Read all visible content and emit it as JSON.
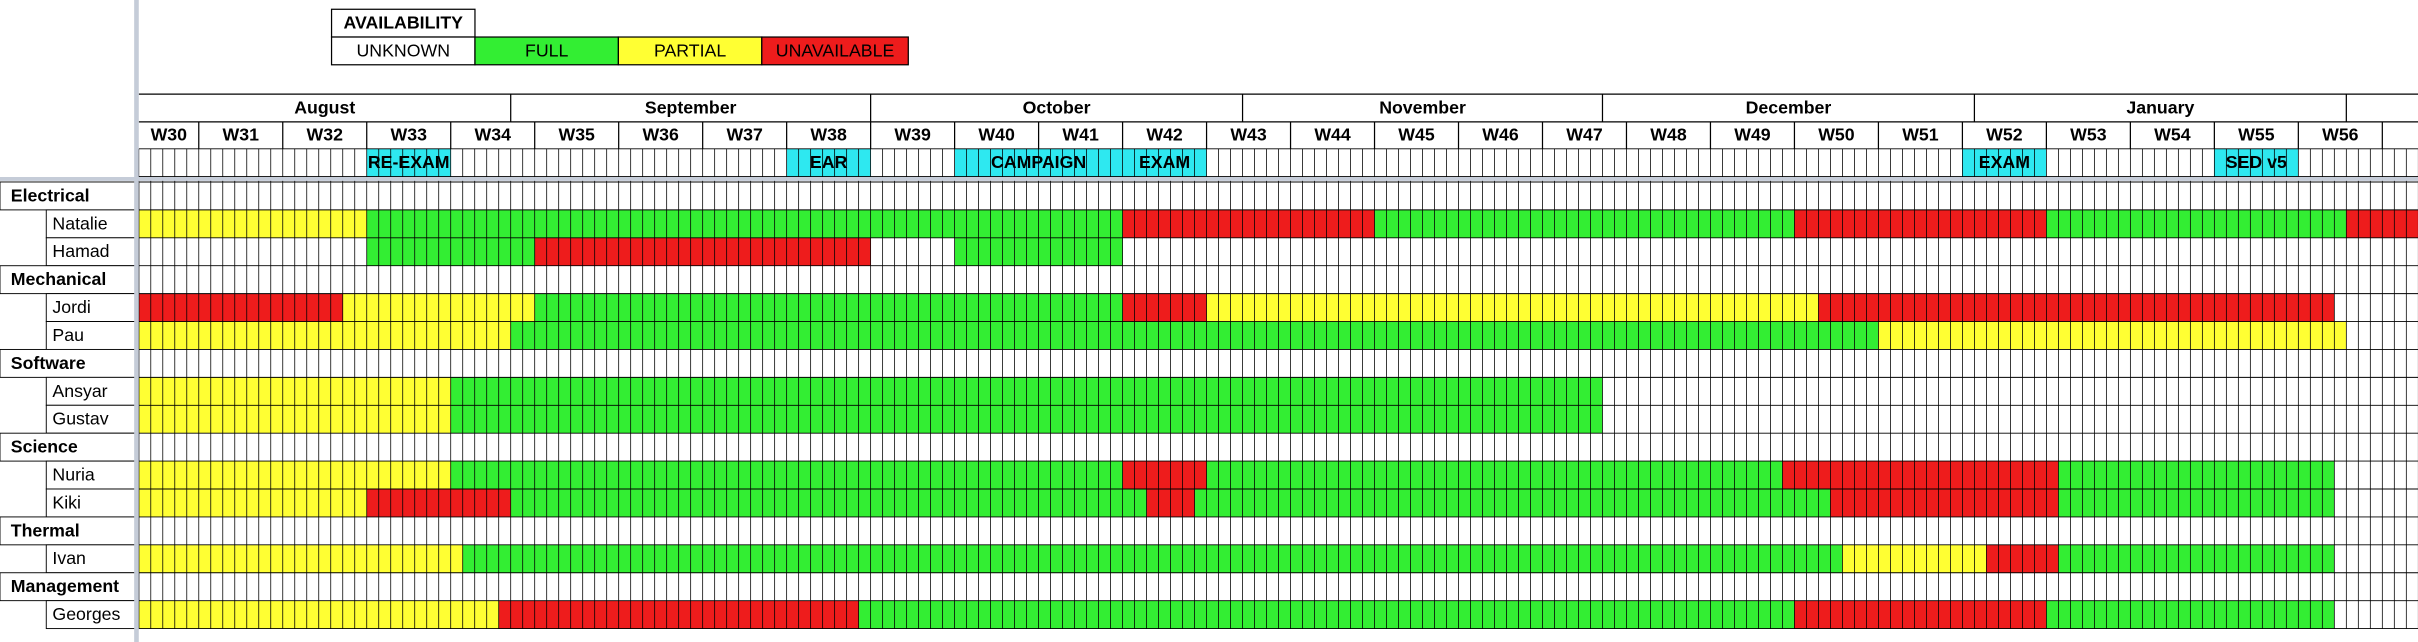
{
  "legend": {
    "title": "AVAILABILITY",
    "items": [
      {
        "label": "UNKNOWN",
        "color": "#ffffff"
      },
      {
        "label": "FULL",
        "color": "#33ee33"
      },
      {
        "label": "PARTIAL",
        "color": "#ffff33"
      },
      {
        "label": "UNAVAILABLE",
        "color": "#ee1c1c"
      }
    ]
  },
  "months": [
    {
      "label": "August",
      "days": 31
    },
    {
      "label": "September",
      "days": 30
    },
    {
      "label": "October",
      "days": 31
    },
    {
      "label": "November",
      "days": 30
    },
    {
      "label": "December",
      "days": 31
    },
    {
      "label": "January",
      "days": 31
    }
  ],
  "weeks": [
    {
      "label": "W30",
      "days": 5
    },
    {
      "label": "W31",
      "days": 7
    },
    {
      "label": "W32",
      "days": 7
    },
    {
      "label": "W33",
      "days": 7
    },
    {
      "label": "W34",
      "days": 7
    },
    {
      "label": "W35",
      "days": 7
    },
    {
      "label": "W36",
      "days": 7
    },
    {
      "label": "W37",
      "days": 7
    },
    {
      "label": "W38",
      "days": 7
    },
    {
      "label": "W39",
      "days": 7
    },
    {
      "label": "W40",
      "days": 7
    },
    {
      "label": "W41",
      "days": 7
    },
    {
      "label": "W42",
      "days": 7
    },
    {
      "label": "W43",
      "days": 7
    },
    {
      "label": "W44",
      "days": 7
    },
    {
      "label": "W45",
      "days": 7
    },
    {
      "label": "W46",
      "days": 7
    },
    {
      "label": "W47",
      "days": 7
    },
    {
      "label": "W48",
      "days": 7
    },
    {
      "label": "W49",
      "days": 7
    },
    {
      "label": "W50",
      "days": 7
    },
    {
      "label": "W51",
      "days": 7
    },
    {
      "label": "W52",
      "days": 7
    },
    {
      "label": "W53",
      "days": 7
    },
    {
      "label": "W54",
      "days": 7
    },
    {
      "label": "W55",
      "days": 7
    },
    {
      "label": "W56",
      "days": 7
    }
  ],
  "events": [
    {
      "label": "RE-EXAM",
      "start": 19,
      "end": 26,
      "color": "#2ee8f0"
    },
    {
      "label": "EAR",
      "start": 54,
      "end": 61,
      "color": "#2ee8f0"
    },
    {
      "label": "CAMPAIGN",
      "start": 68,
      "end": 82,
      "color": "#2ee8f0"
    },
    {
      "label": "EXAM",
      "start": 82,
      "end": 89,
      "color": "#2ee8f0"
    },
    {
      "label": "EXAM",
      "start": 152,
      "end": 159,
      "color": "#2ee8f0"
    },
    {
      "label": "SED v5",
      "start": 173,
      "end": 180,
      "color": "#2ee8f0"
    }
  ],
  "groups": [
    {
      "name": "Electrical",
      "people": [
        {
          "name": "Natalie",
          "segments": [
            {
              "color": "#ffff33",
              "start": 0,
              "end": 19
            },
            {
              "color": "#33ee33",
              "start": 19,
              "end": 82
            },
            {
              "color": "#ee1c1c",
              "start": 82,
              "end": 103
            },
            {
              "color": "#33ee33",
              "start": 103,
              "end": 138
            },
            {
              "color": "#ee1c1c",
              "start": 138,
              "end": 159
            },
            {
              "color": "#33ee33",
              "start": 159,
              "end": 184
            },
            {
              "color": "#ee1c1c",
              "start": 184,
              "end": 190
            }
          ]
        },
        {
          "name": "Hamad",
          "segments": [
            {
              "color": "#33ee33",
              "start": 19,
              "end": 33
            },
            {
              "color": "#ee1c1c",
              "start": 33,
              "end": 61
            },
            {
              "color": "#33ee33",
              "start": 68,
              "end": 82
            }
          ]
        }
      ]
    },
    {
      "name": "Mechanical",
      "people": [
        {
          "name": "Jordi",
          "segments": [
            {
              "color": "#ee1c1c",
              "start": 0,
              "end": 17
            },
            {
              "color": "#ffff33",
              "start": 17,
              "end": 33
            },
            {
              "color": "#33ee33",
              "start": 33,
              "end": 82
            },
            {
              "color": "#ee1c1c",
              "start": 82,
              "end": 89
            },
            {
              "color": "#ffff33",
              "start": 89,
              "end": 140
            },
            {
              "color": "#ee1c1c",
              "start": 140,
              "end": 183
            }
          ]
        },
        {
          "name": "Pau",
          "segments": [
            {
              "color": "#ffff33",
              "start": 0,
              "end": 31
            },
            {
              "color": "#33ee33",
              "start": 31,
              "end": 145
            },
            {
              "color": "#ffff33",
              "start": 145,
              "end": 184
            }
          ]
        }
      ]
    },
    {
      "name": "Software",
      "people": [
        {
          "name": "Ansyar",
          "segments": [
            {
              "color": "#ffff33",
              "start": 0,
              "end": 26
            },
            {
              "color": "#33ee33",
              "start": 26,
              "end": 122
            }
          ]
        },
        {
          "name": "Gustav",
          "segments": [
            {
              "color": "#ffff33",
              "start": 0,
              "end": 26
            },
            {
              "color": "#33ee33",
              "start": 26,
              "end": 122
            }
          ]
        }
      ]
    },
    {
      "name": "Science",
      "people": [
        {
          "name": "Nuria",
          "segments": [
            {
              "color": "#ffff33",
              "start": 0,
              "end": 26
            },
            {
              "color": "#33ee33",
              "start": 26,
              "end": 82
            },
            {
              "color": "#ee1c1c",
              "start": 82,
              "end": 89
            },
            {
              "color": "#33ee33",
              "start": 89,
              "end": 137
            },
            {
              "color": "#ee1c1c",
              "start": 137,
              "end": 160
            },
            {
              "color": "#33ee33",
              "start": 160,
              "end": 183
            }
          ]
        },
        {
          "name": "Kiki",
          "segments": [
            {
              "color": "#ffff33",
              "start": 0,
              "end": 19
            },
            {
              "color": "#ee1c1c",
              "start": 19,
              "end": 31
            },
            {
              "color": "#33ee33",
              "start": 31,
              "end": 84
            },
            {
              "color": "#ee1c1c",
              "start": 84,
              "end": 88
            },
            {
              "color": "#33ee33",
              "start": 88,
              "end": 141
            },
            {
              "color": "#ee1c1c",
              "start": 141,
              "end": 160
            },
            {
              "color": "#33ee33",
              "start": 160,
              "end": 183
            }
          ]
        }
      ]
    },
    {
      "name": "Thermal",
      "people": [
        {
          "name": "Ivan",
          "segments": [
            {
              "color": "#ffff33",
              "start": 0,
              "end": 27
            },
            {
              "color": "#33ee33",
              "start": 27,
              "end": 142
            },
            {
              "color": "#ffff33",
              "start": 142,
              "end": 154
            },
            {
              "color": "#ee1c1c",
              "start": 154,
              "end": 160
            },
            {
              "color": "#33ee33",
              "start": 160,
              "end": 183
            }
          ]
        }
      ]
    },
    {
      "name": "Management",
      "people": [
        {
          "name": "Georges",
          "segments": [
            {
              "color": "#ffff33",
              "start": 0,
              "end": 30
            },
            {
              "color": "#ee1c1c",
              "start": 30,
              "end": 60
            },
            {
              "color": "#33ee33",
              "start": 60,
              "end": 138
            },
            {
              "color": "#ee1c1c",
              "start": 138,
              "end": 159
            },
            {
              "color": "#33ee33",
              "start": 159,
              "end": 183
            }
          ]
        }
      ]
    }
  ]
}
